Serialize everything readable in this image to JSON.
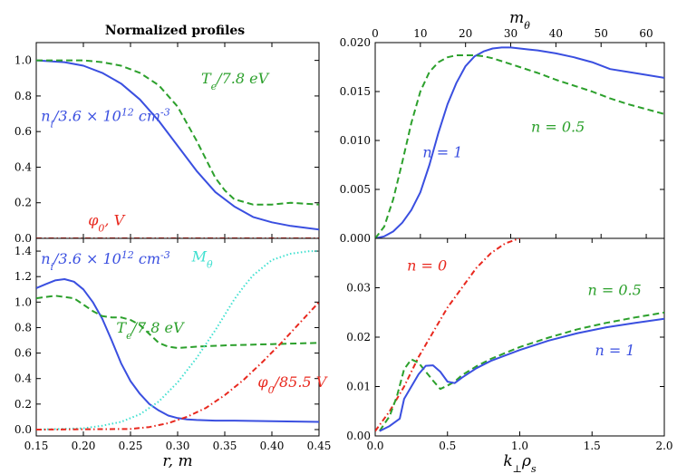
{
  "figure_title": "Normalized profiles",
  "chart_data": [
    {
      "id": "tl",
      "type": "line",
      "title": "Normalized profiles",
      "xlabel": "",
      "ylabel": "",
      "xlim": [
        0.15,
        0.45
      ],
      "ylim": [
        0.0,
        1.1
      ],
      "xticks": [
        "0.15",
        "0.20",
        "0.25",
        "0.30",
        "0.35",
        "0.40",
        "0.45"
      ],
      "yticks": [
        "0.0",
        "0.2",
        "0.4",
        "0.6",
        "0.8",
        "1.0"
      ],
      "series": [
        {
          "name": "ni",
          "label": "n_i/3.6 × 10^12 cm^-3",
          "color": "#3a4fe0",
          "dash": "solid",
          "x": [
            0.15,
            0.18,
            0.2,
            0.22,
            0.24,
            0.26,
            0.28,
            0.3,
            0.32,
            0.34,
            0.36,
            0.38,
            0.4,
            0.42,
            0.45
          ],
          "y": [
            1.0,
            0.99,
            0.97,
            0.93,
            0.87,
            0.78,
            0.66,
            0.52,
            0.38,
            0.26,
            0.18,
            0.12,
            0.09,
            0.07,
            0.05
          ]
        },
        {
          "name": "Te",
          "label": "T_e/7.8 eV",
          "color": "#2ca02c",
          "dash": "dashed",
          "x": [
            0.15,
            0.2,
            0.22,
            0.24,
            0.26,
            0.28,
            0.3,
            0.32,
            0.34,
            0.35,
            0.36,
            0.38,
            0.4,
            0.42,
            0.45
          ],
          "y": [
            1.0,
            1.0,
            0.99,
            0.97,
            0.93,
            0.86,
            0.74,
            0.55,
            0.34,
            0.27,
            0.22,
            0.19,
            0.19,
            0.2,
            0.19
          ]
        },
        {
          "name": "phi0",
          "label": "φ_0, V",
          "color": "#e8281e",
          "dash": "dashdot",
          "x": [
            0.15,
            0.45
          ],
          "y": [
            0.0,
            0.0
          ]
        }
      ],
      "annotations": [
        {
          "text": "T_e/7.8 eV",
          "color": "#2ca02c",
          "x": 0.325,
          "y": 0.87
        },
        {
          "text": "n_i/3.6 × 10^12 cm^-3",
          "color": "#3a4fe0",
          "x": 0.155,
          "y": 0.66
        },
        {
          "text": "φ_0, V",
          "color": "#e8281e",
          "x": 0.205,
          "y": 0.075
        }
      ]
    },
    {
      "id": "bl",
      "type": "line",
      "xlabel": "r, m",
      "ylabel": "",
      "xlim": [
        0.15,
        0.45
      ],
      "ylim": [
        -0.05,
        1.5
      ],
      "xticks": [
        "0.15",
        "0.20",
        "0.25",
        "0.30",
        "0.35",
        "0.40",
        "0.45"
      ],
      "yticks": [
        "0.0",
        "0.2",
        "0.4",
        "0.6",
        "0.8",
        "1.0",
        "1.2",
        "1.4"
      ],
      "series": [
        {
          "name": "ni",
          "label": "n_i/3.6 × 10^12 cm^-3",
          "color": "#3a4fe0",
          "dash": "solid",
          "x": [
            0.15,
            0.16,
            0.17,
            0.18,
            0.19,
            0.2,
            0.21,
            0.22,
            0.23,
            0.24,
            0.25,
            0.26,
            0.27,
            0.28,
            0.29,
            0.3,
            0.31,
            0.32,
            0.34,
            0.36,
            0.4,
            0.45
          ],
          "y": [
            1.11,
            1.14,
            1.17,
            1.18,
            1.16,
            1.1,
            1.0,
            0.87,
            0.7,
            0.52,
            0.38,
            0.28,
            0.2,
            0.15,
            0.11,
            0.09,
            0.08,
            0.075,
            0.07,
            0.07,
            0.065,
            0.06
          ]
        },
        {
          "name": "Te",
          "label": "T_e/7.8 eV",
          "color": "#2ca02c",
          "dash": "dashed",
          "x": [
            0.15,
            0.16,
            0.17,
            0.18,
            0.19,
            0.2,
            0.21,
            0.22,
            0.23,
            0.24,
            0.25,
            0.26,
            0.27,
            0.28,
            0.29,
            0.3,
            0.32,
            0.35,
            0.4,
            0.45
          ],
          "y": [
            1.03,
            1.04,
            1.05,
            1.04,
            1.03,
            0.98,
            0.93,
            0.89,
            0.88,
            0.88,
            0.86,
            0.82,
            0.75,
            0.68,
            0.65,
            0.64,
            0.65,
            0.66,
            0.67,
            0.68
          ]
        },
        {
          "name": "Mtheta",
          "label": "M_θ",
          "color": "#40e0d0",
          "dash": "dotted",
          "x": [
            0.15,
            0.2,
            0.22,
            0.24,
            0.26,
            0.28,
            0.3,
            0.32,
            0.34,
            0.35,
            0.36,
            0.37,
            0.38,
            0.4,
            0.42,
            0.44,
            0.45
          ],
          "y": [
            0.0,
            0.01,
            0.03,
            0.06,
            0.12,
            0.22,
            0.37,
            0.56,
            0.78,
            0.9,
            1.02,
            1.12,
            1.21,
            1.33,
            1.38,
            1.4,
            1.4
          ]
        },
        {
          "name": "phi0",
          "label": "φ_0/85.5 V",
          "color": "#e8281e",
          "dash": "dashdot",
          "x": [
            0.15,
            0.25,
            0.27,
            0.29,
            0.31,
            0.33,
            0.35,
            0.37,
            0.39,
            0.41,
            0.43,
            0.45
          ],
          "y": [
            0.0,
            0.005,
            0.02,
            0.05,
            0.1,
            0.17,
            0.27,
            0.39,
            0.53,
            0.68,
            0.84,
            1.0
          ]
        }
      ],
      "annotations": [
        {
          "text": "n_i/3.6 × 10^12 cm^-3",
          "color": "#3a4fe0",
          "x": 0.155,
          "y": 1.3
        },
        {
          "text": "M_θ",
          "color": "#40e0d0",
          "x": 0.315,
          "y": 1.32
        },
        {
          "text": "T_e/7.8 eV",
          "color": "#2ca02c",
          "x": 0.235,
          "y": 0.76
        },
        {
          "text": "φ_0/85.5 V",
          "color": "#e8281e",
          "x": 0.385,
          "y": 0.335
        }
      ]
    },
    {
      "id": "tr",
      "type": "line",
      "xlabel": "m_θ",
      "ylabel": "",
      "xaxis_position": "top",
      "xlim": [
        0,
        64
      ],
      "ylim": [
        0.0,
        0.02
      ],
      "xticks": [
        "0",
        "10",
        "20",
        "30",
        "40",
        "50",
        "60"
      ],
      "yticks": [
        "0.000",
        "0.005",
        "0.010",
        "0.015",
        "0.020"
      ],
      "series": [
        {
          "name": "n1",
          "label": "n = 1",
          "color": "#3a4fe0",
          "dash": "solid",
          "x": [
            0,
            2,
            4,
            6,
            8,
            10,
            12,
            14,
            16,
            18,
            20,
            22,
            24,
            26,
            28,
            30,
            32,
            34,
            36,
            40,
            44,
            48,
            52,
            56,
            60,
            64
          ],
          "y": [
            0.0,
            0.0002,
            0.0007,
            0.0016,
            0.0029,
            0.0047,
            0.0075,
            0.0108,
            0.0137,
            0.0159,
            0.0176,
            0.0186,
            0.0191,
            0.0194,
            0.0195,
            0.0195,
            0.0194,
            0.0193,
            0.0192,
            0.0189,
            0.0185,
            0.018,
            0.0173,
            0.017,
            0.0167,
            0.0164
          ]
        },
        {
          "name": "n05",
          "label": "n = 0.5",
          "color": "#2ca02c",
          "dash": "dashed",
          "x": [
            0,
            2,
            4,
            6,
            8,
            10,
            12,
            14,
            16,
            18,
            20,
            22,
            24,
            26,
            28,
            32,
            36,
            40,
            44,
            48,
            52,
            56,
            60,
            64
          ],
          "y": [
            0.0,
            0.0012,
            0.004,
            0.0078,
            0.0118,
            0.015,
            0.017,
            0.018,
            0.0185,
            0.0187,
            0.0187,
            0.0187,
            0.0186,
            0.0184,
            0.0181,
            0.0175,
            0.0169,
            0.0162,
            0.0156,
            0.015,
            0.0143,
            0.0137,
            0.0132,
            0.0127
          ]
        }
      ],
      "annotations": [
        {
          "text": "n = 1",
          "color": "#3a4fe0",
          "x": 10.5,
          "y": 0.0083
        },
        {
          "text": "n = 0.5",
          "color": "#2ca02c",
          "x": 34.5,
          "y": 0.0109
        }
      ]
    },
    {
      "id": "br",
      "type": "line",
      "xlabel": "k_⊥ρ_s",
      "ylabel": "",
      "xlim": [
        0.0,
        2.0
      ],
      "ylim": [
        0.0,
        0.04
      ],
      "xticks": [
        "0.0",
        "0.5",
        "1.0",
        "1.5",
        "2.0"
      ],
      "yticks": [
        "0.00",
        "0.01",
        "0.02",
        "0.03"
      ],
      "series": [
        {
          "name": "n0",
          "label": "n = 0",
          "color": "#e8281e",
          "dash": "dashdot",
          "x": [
            0.0,
            0.1,
            0.2,
            0.3,
            0.4,
            0.5,
            0.6,
            0.7,
            0.8,
            0.9,
            1.0
          ],
          "y": [
            0.001,
            0.005,
            0.01,
            0.016,
            0.021,
            0.026,
            0.03,
            0.034,
            0.037,
            0.039,
            0.04
          ]
        },
        {
          "name": "n05",
          "label": "n = 0.5",
          "color": "#2ca02c",
          "dash": "dashed",
          "x": [
            0.03,
            0.1,
            0.15,
            0.2,
            0.25,
            0.3,
            0.35,
            0.4,
            0.45,
            0.5,
            0.55,
            0.6,
            0.7,
            0.8,
            1.0,
            1.2,
            1.4,
            1.6,
            1.8,
            2.0
          ],
          "y": [
            0.001,
            0.004,
            0.008,
            0.0135,
            0.0155,
            0.0148,
            0.013,
            0.0112,
            0.0095,
            0.0102,
            0.011,
            0.0123,
            0.0141,
            0.0156,
            0.018,
            0.0199,
            0.0216,
            0.0229,
            0.024,
            0.025
          ]
        },
        {
          "name": "n1",
          "label": "n = 1",
          "color": "#3a4fe0",
          "dash": "solid",
          "x": [
            0.03,
            0.1,
            0.17,
            0.2,
            0.25,
            0.3,
            0.35,
            0.4,
            0.45,
            0.5,
            0.55,
            0.6,
            0.7,
            0.8,
            1.0,
            1.2,
            1.4,
            1.6,
            1.8,
            2.0
          ],
          "y": [
            0.001,
            0.002,
            0.0035,
            0.0075,
            0.01,
            0.0125,
            0.0142,
            0.0143,
            0.013,
            0.011,
            0.0107,
            0.0118,
            0.0137,
            0.0152,
            0.0174,
            0.0193,
            0.0208,
            0.022,
            0.0229,
            0.0237
          ]
        }
      ],
      "annotations": [
        {
          "text": "n = 0",
          "color": "#e8281e",
          "x": 0.22,
          "y": 0.0335
        },
        {
          "text": "n = 0.5",
          "color": "#2ca02c",
          "x": 1.47,
          "y": 0.0285
        },
        {
          "text": "n = 1",
          "color": "#3a4fe0",
          "x": 1.52,
          "y": 0.0163
        }
      ]
    }
  ]
}
